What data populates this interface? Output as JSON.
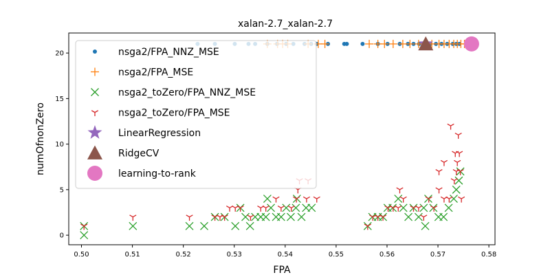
{
  "chart_data": {
    "type": "scatter",
    "title": "xalan-2.7_xalan-2.7",
    "xlabel": "FPA",
    "ylabel": "numOfnonZero",
    "xlim": [
      0.4975,
      0.5812
    ],
    "ylim": [
      -1.05,
      22.2
    ],
    "xticks": [
      "0.50",
      "0.51",
      "0.52",
      "0.53",
      "0.54",
      "0.55",
      "0.56",
      "0.57",
      "0.58"
    ],
    "yticks": [
      "0",
      "5",
      "10",
      "15",
      "20"
    ],
    "grid": false,
    "legend_position": "upper-left",
    "series": [
      {
        "name": "nsga2/FPA_NNZ_MSE",
        "marker": "dot",
        "color": "#1f77b4",
        "points": [
          [
            0.5228,
            21
          ],
          [
            0.5262,
            21
          ],
          [
            0.5301,
            21
          ],
          [
            0.5328,
            21
          ],
          [
            0.5341,
            21
          ],
          [
            0.5365,
            21
          ],
          [
            0.5384,
            21
          ],
          [
            0.5402,
            21
          ],
          [
            0.5416,
            21
          ],
          [
            0.5438,
            21
          ],
          [
            0.5451,
            21
          ],
          [
            0.5462,
            21
          ],
          [
            0.5484,
            21
          ],
          [
            0.5516,
            21
          ],
          [
            0.5521,
            21
          ],
          [
            0.5552,
            21
          ],
          [
            0.5582,
            21
          ],
          [
            0.5601,
            21
          ],
          [
            0.5625,
            21
          ],
          [
            0.5641,
            21
          ],
          [
            0.5652,
            21
          ],
          [
            0.5663,
            21
          ],
          [
            0.5674,
            21
          ],
          [
            0.5685,
            21
          ],
          [
            0.5696,
            21
          ],
          [
            0.5707,
            21
          ],
          [
            0.5718,
            21
          ],
          [
            0.5729,
            21
          ],
          [
            0.5736,
            21
          ],
          [
            0.5742,
            21
          ]
        ]
      },
      {
        "name": "nsga2/FPA_MSE",
        "marker": "plus",
        "color": "#ff7f0e",
        "points": [
          [
            0.5365,
            21
          ],
          [
            0.5385,
            21
          ],
          [
            0.5395,
            21
          ],
          [
            0.5405,
            21
          ],
          [
            0.5445,
            21
          ],
          [
            0.5465,
            21
          ],
          [
            0.5478,
            21
          ],
          [
            0.5565,
            21
          ],
          [
            0.5582,
            21
          ],
          [
            0.5595,
            21
          ],
          [
            0.5612,
            21
          ],
          [
            0.5631,
            21
          ],
          [
            0.5645,
            21
          ],
          [
            0.5662,
            21
          ],
          [
            0.5688,
            21
          ],
          [
            0.5702,
            21
          ],
          [
            0.5712,
            21
          ],
          [
            0.5722,
            21
          ],
          [
            0.5731,
            21
          ],
          [
            0.5738,
            21
          ],
          [
            0.5745,
            21
          ],
          [
            0.5752,
            21
          ]
        ]
      },
      {
        "name": "nsga2_toZero/FPA_NNZ_MSE",
        "marker": "x",
        "color": "#2ca02c",
        "points": [
          [
            0.5005,
            0
          ],
          [
            0.5005,
            1
          ],
          [
            0.5101,
            1
          ],
          [
            0.5212,
            1
          ],
          [
            0.5241,
            1
          ],
          [
            0.5262,
            2
          ],
          [
            0.5281,
            2
          ],
          [
            0.5302,
            1
          ],
          [
            0.5312,
            3
          ],
          [
            0.5322,
            2
          ],
          [
            0.5331,
            1
          ],
          [
            0.5341,
            2
          ],
          [
            0.5352,
            2
          ],
          [
            0.5362,
            2
          ],
          [
            0.5372,
            3
          ],
          [
            0.5382,
            2
          ],
          [
            0.5392,
            2
          ],
          [
            0.5402,
            3
          ],
          [
            0.5411,
            2
          ],
          [
            0.5421,
            3
          ],
          [
            0.5432,
            2
          ],
          [
            0.5441,
            3
          ],
          [
            0.5452,
            3
          ],
          [
            0.5365,
            4
          ],
          [
            0.5423,
            4
          ],
          [
            0.5562,
            1
          ],
          [
            0.5571,
            2
          ],
          [
            0.5582,
            2
          ],
          [
            0.5592,
            2
          ],
          [
            0.5601,
            3
          ],
          [
            0.5611,
            3
          ],
          [
            0.5622,
            4
          ],
          [
            0.5632,
            3
          ],
          [
            0.5642,
            2
          ],
          [
            0.5652,
            3
          ],
          [
            0.5662,
            2
          ],
          [
            0.5672,
            3
          ],
          [
            0.5681,
            4
          ],
          [
            0.5691,
            3
          ],
          [
            0.5701,
            2
          ],
          [
            0.5711,
            2
          ],
          [
            0.5721,
            3
          ],
          [
            0.5731,
            4
          ],
          [
            0.5736,
            5
          ],
          [
            0.5741,
            6
          ],
          [
            0.5744,
            7
          ],
          [
            0.5675,
            1
          ]
        ]
      },
      {
        "name": "nsga2_toZero/FPA_MSE",
        "marker": "tri",
        "color": "#d62728",
        "points": [
          [
            0.5005,
            1
          ],
          [
            0.5101,
            2
          ],
          [
            0.5212,
            2
          ],
          [
            0.5262,
            2
          ],
          [
            0.5272,
            2
          ],
          [
            0.5281,
            2
          ],
          [
            0.5291,
            3
          ],
          [
            0.5302,
            3
          ],
          [
            0.5312,
            3
          ],
          [
            0.5332,
            2
          ],
          [
            0.5352,
            3
          ],
          [
            0.5362,
            3
          ],
          [
            0.5382,
            4
          ],
          [
            0.5392,
            3
          ],
          [
            0.5412,
            3
          ],
          [
            0.5422,
            4
          ],
          [
            0.5425,
            5
          ],
          [
            0.5428,
            6
          ],
          [
            0.5442,
            4
          ],
          [
            0.5445,
            6
          ],
          [
            0.5462,
            4
          ],
          [
            0.5562,
            1
          ],
          [
            0.5572,
            2
          ],
          [
            0.5582,
            2
          ],
          [
            0.5592,
            2
          ],
          [
            0.5602,
            3
          ],
          [
            0.5612,
            3
          ],
          [
            0.5622,
            3
          ],
          [
            0.5625,
            5
          ],
          [
            0.5632,
            4
          ],
          [
            0.5652,
            3
          ],
          [
            0.5662,
            3
          ],
          [
            0.5672,
            2
          ],
          [
            0.5682,
            4
          ],
          [
            0.5692,
            3
          ],
          [
            0.5702,
            5
          ],
          [
            0.5712,
            4
          ],
          [
            0.5722,
            4
          ],
          [
            0.5732,
            6
          ],
          [
            0.5734,
            9
          ],
          [
            0.5736,
            7
          ],
          [
            0.5738,
            8
          ],
          [
            0.574,
            11
          ],
          [
            0.5742,
            9
          ],
          [
            0.5744,
            7
          ],
          [
            0.5746,
            4
          ],
          [
            0.5702,
            7
          ],
          [
            0.5712,
            8
          ],
          [
            0.5725,
            12
          ]
        ]
      },
      {
        "name": "LinearRegression",
        "marker": "star",
        "color": "#9467bd",
        "points": [
          [
            0.5676,
            21
          ]
        ]
      },
      {
        "name": "RidgeCV",
        "marker": "triangle",
        "color": "#8c564b",
        "points": [
          [
            0.5676,
            21
          ]
        ]
      },
      {
        "name": "learning-to-rank",
        "marker": "circle",
        "color": "#e377c2",
        "points": [
          [
            0.5766,
            21
          ]
        ]
      }
    ]
  }
}
